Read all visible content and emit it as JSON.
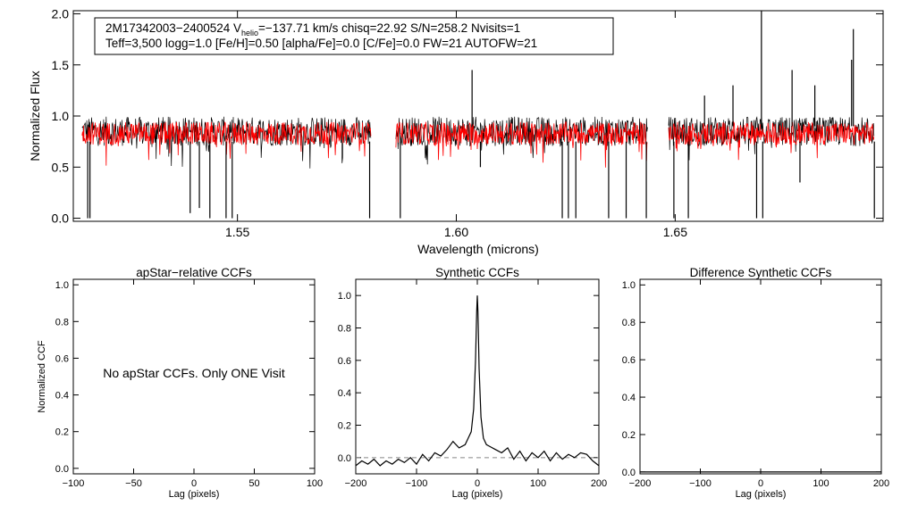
{
  "chart_data": [
    {
      "type": "line",
      "name": "spectrum",
      "info_line1_a": "2M17342003−2400524  V",
      "info_line1_sub": "helio",
      "info_line1_b": "=−137.71 km/s  chisq=22.92  S/N=258.2  Nvisits=1",
      "info_line2": "Teff=3,500 logg=1.0 [Fe/H]=0.50 [alpha/Fe]=0.0 [C/Fe]=0.0 FW=21 AUTOFW=21",
      "xlabel": "Wavelength (microns)",
      "ylabel": "Normalized Flux",
      "xlim": [
        1.5125,
        1.6975
      ],
      "ylim": [
        -0.03,
        2.03
      ],
      "xticks": [
        1.55,
        1.6,
        1.65
      ],
      "xtick_labels": [
        "1.55",
        "1.60",
        "1.65"
      ],
      "yticks": [
        0.0,
        0.5,
        1.0,
        1.5,
        2.0
      ],
      "ytick_labels": [
        "0.0",
        "0.5",
        "1.0",
        "1.5",
        "2.0"
      ],
      "chip_ranges": [
        [
          1.5145,
          1.5805
        ],
        [
          1.5862,
          1.6437
        ],
        [
          1.6485,
          1.6955
        ]
      ],
      "series": [
        {
          "name": "observed",
          "color": "#000000",
          "median_flux": 0.85,
          "noise": 0.09,
          "emission_peaks": [
            {
              "x": 1.6036,
              "y": 1.45
            },
            {
              "x": 1.6567,
              "y": 1.2
            },
            {
              "x": 1.6632,
              "y": 1.3
            },
            {
              "x": 1.6697,
              "y": 2.03
            },
            {
              "x": 1.6767,
              "y": 1.45
            },
            {
              "x": 1.6819,
              "y": 1.3
            },
            {
              "x": 1.6907,
              "y": 1.85
            },
            {
              "x": 1.6903,
              "y": 1.55
            }
          ],
          "absorption_dips": [
            {
              "x": 1.5158,
              "y": 0.0
            },
            {
              "x": 1.5163,
              "y": 0.0
            },
            {
              "x": 1.5392,
              "y": 0.05
            },
            {
              "x": 1.5413,
              "y": 0.1
            },
            {
              "x": 1.5437,
              "y": 0.0
            },
            {
              "x": 1.5474,
              "y": 0.0
            },
            {
              "x": 1.5488,
              "y": 0.0
            },
            {
              "x": 1.5802,
              "y": 0.0
            },
            {
              "x": 1.5872,
              "y": 0.0
            },
            {
              "x": 1.6055,
              "y": 0.5
            },
            {
              "x": 1.6242,
              "y": 0.0
            },
            {
              "x": 1.6256,
              "y": 0.0
            },
            {
              "x": 1.6273,
              "y": 0.0
            },
            {
              "x": 1.6348,
              "y": 0.0
            },
            {
              "x": 1.6388,
              "y": 0.0
            },
            {
              "x": 1.6434,
              "y": 0.0
            },
            {
              "x": 1.6497,
              "y": 0.0
            },
            {
              "x": 1.653,
              "y": 0.0
            },
            {
              "x": 1.6686,
              "y": 0.0
            },
            {
              "x": 1.67,
              "y": 0.0
            },
            {
              "x": 1.6785,
              "y": 0.35
            },
            {
              "x": 1.6955,
              "y": 0.0
            }
          ]
        },
        {
          "name": "model",
          "color": "#ff0000",
          "median_flux": 0.83,
          "noise": 0.07
        }
      ]
    },
    {
      "type": "line",
      "name": "apstar-ccf",
      "title": "apStar−relative CCFs",
      "xlabel": "Lag (pixels)",
      "ylabel": "Normalized CCF",
      "xlim": [
        -100,
        100
      ],
      "ylim": [
        -0.03,
        1.03
      ],
      "xticks": [
        -100,
        -50,
        0,
        50,
        100
      ],
      "xtick_labels": [
        "−100",
        "−50",
        "0",
        "50",
        "100"
      ],
      "yticks": [
        0.0,
        0.2,
        0.4,
        0.6,
        0.8,
        1.0
      ],
      "ytick_labels": [
        "0.0",
        "0.2",
        "0.4",
        "0.6",
        "0.8",
        "1.0"
      ],
      "annotation": "No apStar CCFs.  Only ONE Visit",
      "series": []
    },
    {
      "type": "line",
      "name": "synthetic-ccf",
      "title": "Synthetic CCFs",
      "xlabel": "Lag (pixels)",
      "xlim": [
        -200,
        200
      ],
      "ylim": [
        -0.1,
        1.1
      ],
      "xticks": [
        -200,
        -100,
        0,
        100,
        200
      ],
      "xtick_labels": [
        "−200",
        "−100",
        "0",
        "100",
        "200"
      ],
      "yticks": [
        0.0,
        0.2,
        0.4,
        0.6,
        0.8,
        1.0
      ],
      "ytick_labels": [
        "0.0",
        "0.2",
        "0.4",
        "0.6",
        "0.8",
        "1.0"
      ],
      "baseline": 0.0,
      "series": [
        {
          "name": "ccf",
          "color": "#000000",
          "x": [
            -200,
            -190,
            -180,
            -170,
            -160,
            -150,
            -140,
            -130,
            -120,
            -110,
            -100,
            -90,
            -80,
            -70,
            -60,
            -50,
            -40,
            -30,
            -20,
            -15,
            -10,
            -6,
            -3,
            -1,
            0,
            1,
            3,
            6,
            10,
            15,
            20,
            30,
            40,
            50,
            60,
            70,
            80,
            90,
            100,
            110,
            120,
            130,
            140,
            150,
            160,
            170,
            180,
            190,
            200
          ],
          "y": [
            -0.05,
            -0.02,
            -0.04,
            -0.01,
            -0.05,
            -0.02,
            -0.04,
            -0.01,
            -0.03,
            0.0,
            -0.04,
            0.02,
            -0.02,
            0.03,
            0.01,
            0.05,
            0.1,
            0.06,
            0.08,
            0.12,
            0.16,
            0.3,
            0.6,
            0.9,
            1.0,
            0.9,
            0.55,
            0.25,
            0.12,
            0.08,
            0.07,
            0.05,
            0.03,
            0.06,
            -0.01,
            0.04,
            -0.02,
            0.03,
            0.0,
            0.04,
            -0.02,
            0.03,
            -0.01,
            0.02,
            0.0,
            0.03,
            0.02,
            -0.02,
            -0.05
          ]
        }
      ]
    },
    {
      "type": "line",
      "name": "difference-ccf",
      "title": "Difference Synthetic CCFs",
      "xlabel": "Lag (pixels)",
      "xlim": [
        -200,
        200
      ],
      "ylim": [
        -0.01,
        1.03
      ],
      "xticks": [
        -200,
        -100,
        0,
        100,
        200
      ],
      "xtick_labels": [
        "−200",
        "−100",
        "0",
        "100",
        "200"
      ],
      "yticks": [
        0.0,
        0.2,
        0.4,
        0.6,
        0.8,
        1.0
      ],
      "ytick_labels": [
        "0.0",
        "0.2",
        "0.4",
        "0.6",
        "0.8",
        "1.0"
      ],
      "series": [
        {
          "name": "difference",
          "color": "#000000",
          "x": [
            -200,
            200
          ],
          "y": [
            0.0,
            0.0
          ]
        }
      ]
    }
  ]
}
